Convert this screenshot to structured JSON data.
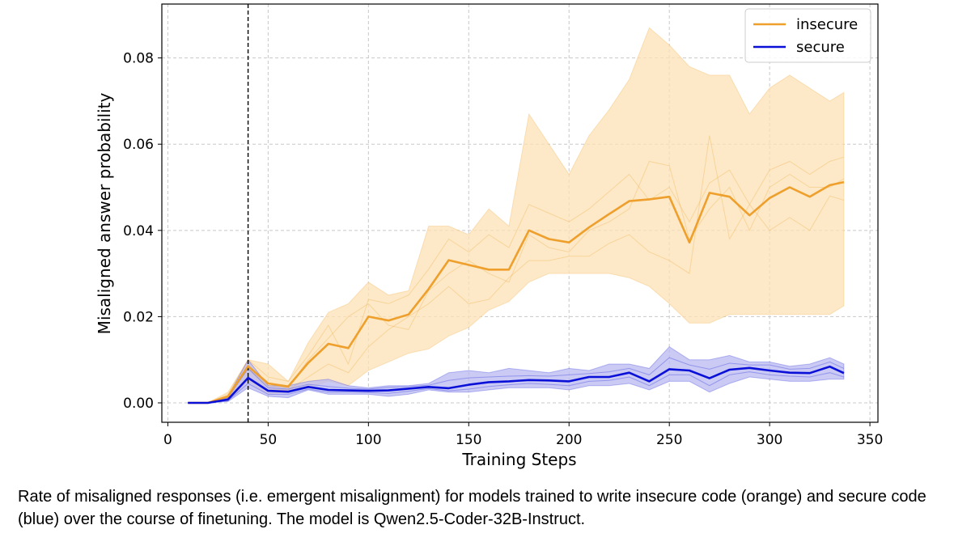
{
  "chart_data": {
    "type": "line",
    "xlabel": "Training Steps",
    "ylabel": "Misaligned answer probability",
    "xlim": [
      -3,
      354
    ],
    "ylim": [
      -0.0045,
      0.0925
    ],
    "xticks": [
      0,
      50,
      100,
      150,
      200,
      250,
      300,
      350
    ],
    "yticks": [
      0.0,
      0.02,
      0.04,
      0.06,
      0.08
    ],
    "xtick_labels": [
      "0",
      "50",
      "100",
      "150",
      "200",
      "250",
      "300",
      "350"
    ],
    "ytick_labels": [
      "0.00",
      "0.02",
      "0.04",
      "0.06",
      "0.08"
    ],
    "grid": true,
    "legend_position": "top-right",
    "vline_x": 40,
    "x": [
      10,
      20,
      30,
      40,
      50,
      60,
      70,
      80,
      90,
      100,
      110,
      120,
      130,
      140,
      150,
      160,
      170,
      180,
      190,
      200,
      210,
      220,
      230,
      240,
      250,
      260,
      270,
      280,
      290,
      300,
      310,
      320,
      330,
      337
    ],
    "series": [
      {
        "name": "insecure",
        "color": "#ee9f2c",
        "band_color": "#fce1b4",
        "mean": [
          0.0,
          0.0,
          0.0015,
          0.0085,
          0.0045,
          0.0038,
          0.0093,
          0.0137,
          0.0127,
          0.02,
          0.0191,
          0.0205,
          0.0264,
          0.0331,
          0.032,
          0.0309,
          0.0309,
          0.04,
          0.038,
          0.0372,
          0.0407,
          0.0438,
          0.0468,
          0.0472,
          0.0478,
          0.0372,
          0.0487,
          0.0478,
          0.0435,
          0.0475,
          0.05,
          0.0478,
          0.0505,
          0.0512
        ],
        "upper": [
          0.0,
          0.0,
          0.0025,
          0.01,
          0.009,
          0.005,
          0.014,
          0.021,
          0.023,
          0.028,
          0.025,
          0.026,
          0.041,
          0.041,
          0.039,
          0.045,
          0.041,
          0.067,
          0.06,
          0.053,
          0.062,
          0.068,
          0.075,
          0.087,
          0.083,
          0.078,
          0.076,
          0.076,
          0.067,
          0.073,
          0.076,
          0.073,
          0.07,
          0.072
        ],
        "lower": [
          0.0,
          0.0,
          0.0005,
          0.005,
          0.002,
          0.0025,
          0.0035,
          0.005,
          0.004,
          0.0075,
          0.0095,
          0.0115,
          0.0125,
          0.0155,
          0.0175,
          0.0215,
          0.0235,
          0.028,
          0.03,
          0.03,
          0.03,
          0.03,
          0.029,
          0.027,
          0.023,
          0.0185,
          0.0185,
          0.0205,
          0.0205,
          0.0205,
          0.0205,
          0.0205,
          0.0205,
          0.0225
        ],
        "runs": [
          [
            0.0,
            0.0,
            0.001,
            0.006,
            0.003,
            0.003,
            0.006,
            0.009,
            0.007,
            0.013,
            0.017,
            0.02,
            0.023,
            0.027,
            0.023,
            0.024,
            0.029,
            0.033,
            0.033,
            0.034,
            0.034,
            0.037,
            0.039,
            0.035,
            0.033,
            0.03,
            0.062,
            0.038,
            0.046,
            0.04,
            0.043,
            0.04,
            0.048,
            0.047
          ],
          [
            0.0,
            0.0,
            0.002,
            0.01,
            0.006,
            0.005,
            0.011,
            0.018,
            0.009,
            0.024,
            0.023,
            0.025,
            0.031,
            0.038,
            0.035,
            0.039,
            0.036,
            0.046,
            0.044,
            0.042,
            0.045,
            0.049,
            0.053,
            0.047,
            0.05,
            0.042,
            0.051,
            0.054,
            0.046,
            0.054,
            0.056,
            0.053,
            0.056,
            0.057
          ],
          [
            0.0,
            0.0,
            0.0015,
            0.008,
            0.004,
            0.0035,
            0.01,
            0.015,
            0.02,
            0.023,
            0.018,
            0.017,
            0.026,
            0.03,
            0.033,
            0.03,
            0.028,
            0.039,
            0.036,
            0.035,
            0.04,
            0.042,
            0.045,
            0.056,
            0.055,
            0.038,
            0.045,
            0.05,
            0.04,
            0.05,
            0.053,
            0.05,
            0.05,
            0.052
          ]
        ]
      },
      {
        "name": "secure",
        "color": "#0a10d8",
        "band_color": "#b8b8f0",
        "mean": [
          0.0,
          0.0,
          0.0008,
          0.0058,
          0.0028,
          0.0026,
          0.0037,
          0.003,
          0.0029,
          0.0028,
          0.0029,
          0.0033,
          0.0037,
          0.0034,
          0.0042,
          0.0048,
          0.005,
          0.0053,
          0.0052,
          0.005,
          0.006,
          0.006,
          0.007,
          0.005,
          0.0078,
          0.0075,
          0.0057,
          0.0077,
          0.0081,
          0.0075,
          0.007,
          0.0069,
          0.0084,
          0.0069
        ],
        "upper": [
          0.0,
          0.0,
          0.0015,
          0.01,
          0.004,
          0.004,
          0.005,
          0.0055,
          0.004,
          0.0035,
          0.004,
          0.004,
          0.0045,
          0.007,
          0.0075,
          0.007,
          0.008,
          0.0075,
          0.007,
          0.008,
          0.0075,
          0.009,
          0.009,
          0.008,
          0.013,
          0.01,
          0.01,
          0.011,
          0.0095,
          0.0095,
          0.0085,
          0.009,
          0.0105,
          0.009
        ],
        "lower": [
          0.0,
          0.0,
          0.0003,
          0.0035,
          0.0015,
          0.0012,
          0.003,
          0.002,
          0.002,
          0.002,
          0.0015,
          0.002,
          0.003,
          0.0025,
          0.0025,
          0.003,
          0.0035,
          0.0035,
          0.0035,
          0.003,
          0.004,
          0.004,
          0.0045,
          0.003,
          0.005,
          0.005,
          0.0025,
          0.0045,
          0.006,
          0.0055,
          0.005,
          0.005,
          0.0055,
          0.0055
        ],
        "runs": [
          [
            0.0,
            0.0,
            0.0005,
            0.0045,
            0.002,
            0.002,
            0.0032,
            0.0025,
            0.0025,
            0.0024,
            0.0022,
            0.0027,
            0.0033,
            0.0028,
            0.0032,
            0.0038,
            0.0042,
            0.0045,
            0.0043,
            0.004,
            0.005,
            0.0052,
            0.006,
            0.004,
            0.0065,
            0.0065,
            0.004,
            0.0065,
            0.0072,
            0.0065,
            0.0062,
            0.006,
            0.007,
            0.006
          ],
          [
            0.0,
            0.0,
            0.0012,
            0.008,
            0.0035,
            0.0032,
            0.0043,
            0.0038,
            0.0034,
            0.0032,
            0.0036,
            0.0038,
            0.0041,
            0.0052,
            0.0058,
            0.006,
            0.0062,
            0.0063,
            0.0062,
            0.0065,
            0.0068,
            0.0072,
            0.008,
            0.0065,
            0.0105,
            0.0088,
            0.0078,
            0.0092,
            0.0088,
            0.0088,
            0.0078,
            0.008,
            0.0095,
            0.008
          ]
        ]
      }
    ]
  },
  "caption": "Rate of misaligned responses (i.e. emergent misalignment) for models trained to write insecure code (orange) and secure code (blue) over the course of finetuning. The model is Qwen2.5-Coder-32B-Instruct."
}
